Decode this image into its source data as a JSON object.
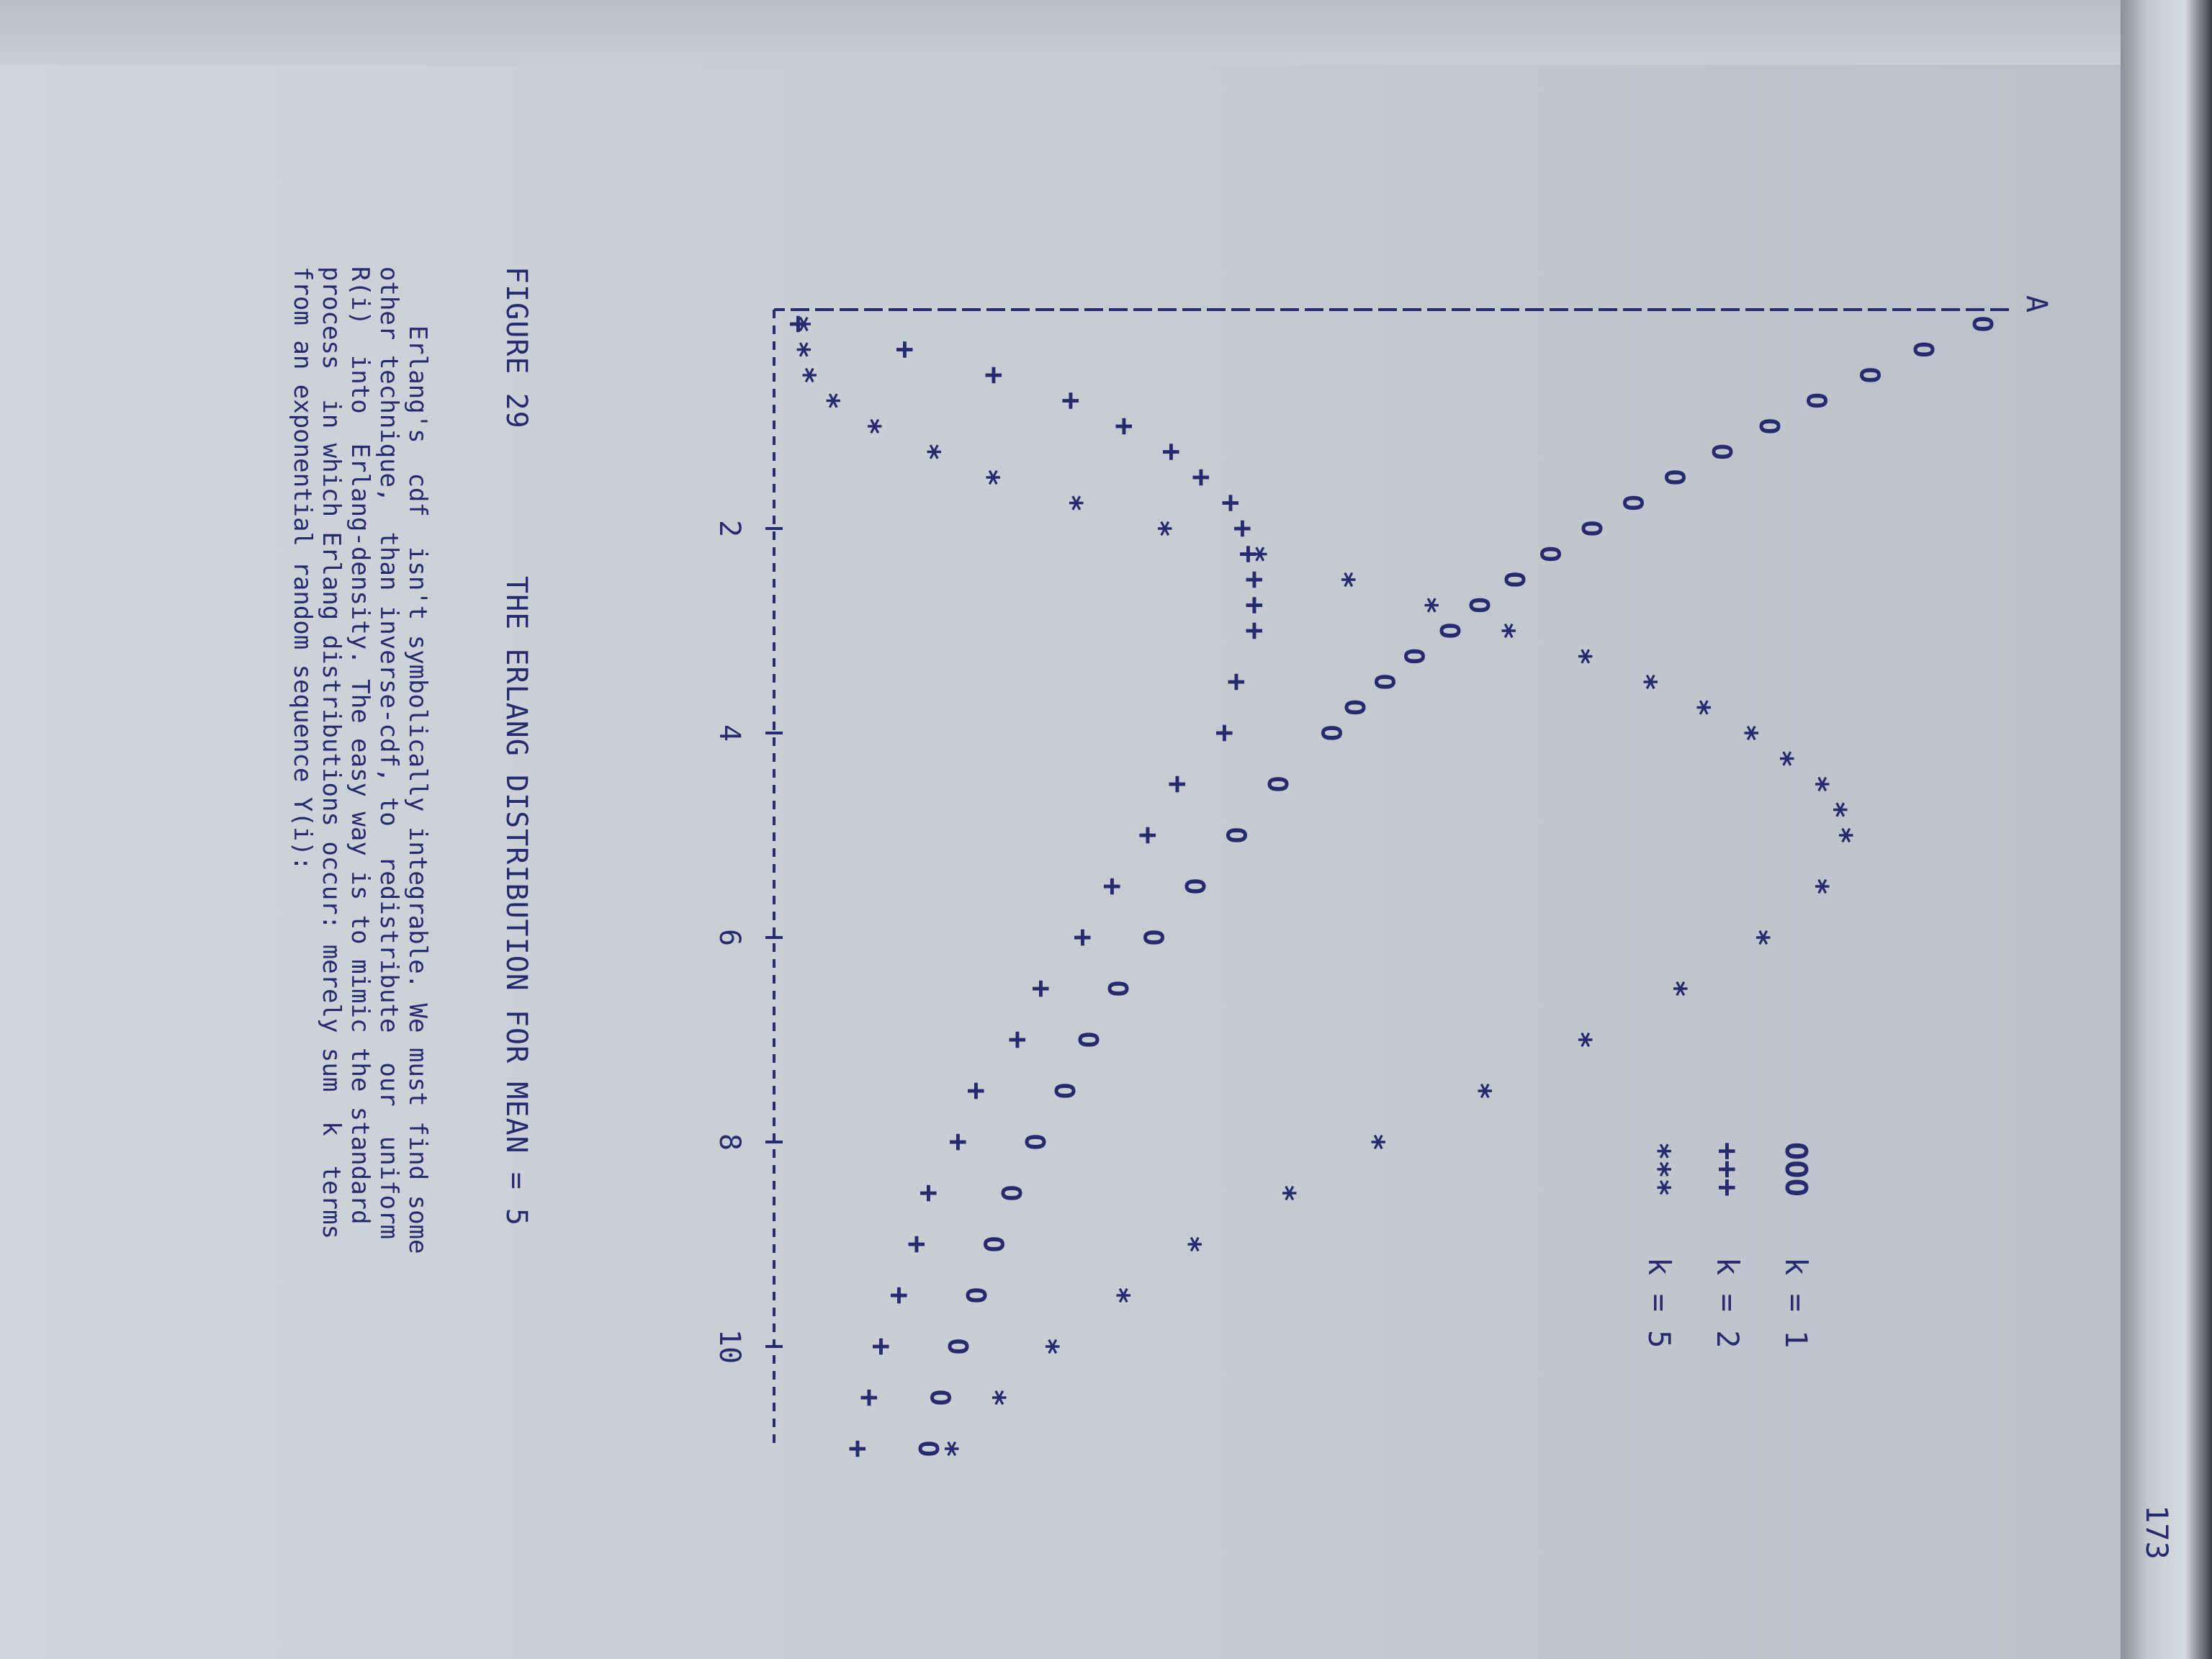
{
  "page": {
    "number": "173",
    "figure_label": "FIGURE 29",
    "figure_title": "THE ERLANG DISTRIBUTION FOR MEAN = 5",
    "body_lines": [
      "    Erlang's  cdf  isn't symbolically integrable. We must find some",
      "other technique,  than inverse-cdf, to  redistribute  our  uniform",
      "R(i)  into  Erlang-density. The easy way is to mimic the standard",
      "process  in which Erlang distributions occur: merely sum  k  terms",
      "from an exponential random sequence Y(i):"
    ]
  },
  "chart_data": {
    "type": "scatter",
    "x_ticks": [
      2,
      4,
      6,
      8,
      10
    ],
    "xlim": [
      0,
      11
    ],
    "ylim": [
      0,
      0.2
    ],
    "axis_arrow_label": "A",
    "legend_position": "right",
    "series": [
      {
        "name": "k = 1",
        "symbol": "O",
        "legend_marker": "OOO",
        "x": [
          0.0,
          0.25,
          0.5,
          0.75,
          1.0,
          1.25,
          1.5,
          1.75,
          2.0,
          2.25,
          2.5,
          2.75,
          3.0,
          3.25,
          3.5,
          3.75,
          4.0,
          4.5,
          5.0,
          5.5,
          6.0,
          6.5,
          7.0,
          7.5,
          8.0,
          8.5,
          9.0,
          9.5,
          10.0,
          10.5,
          11.0
        ],
        "y": [
          0.2,
          0.19,
          0.181,
          0.172,
          0.164,
          0.156,
          0.148,
          0.141,
          0.134,
          0.127,
          0.121,
          0.115,
          0.11,
          0.104,
          0.099,
          0.094,
          0.09,
          0.081,
          0.074,
          0.067,
          0.06,
          0.054,
          0.049,
          0.045,
          0.04,
          0.036,
          0.033,
          0.03,
          0.027,
          0.024,
          0.022
        ]
      },
      {
        "name": "k = 2",
        "symbol": "+",
        "legend_marker": "+++",
        "x": [
          0.0,
          0.25,
          0.5,
          0.75,
          1.0,
          1.25,
          1.5,
          1.75,
          2.0,
          2.25,
          2.5,
          2.75,
          3.0,
          3.5,
          4.0,
          4.5,
          5.0,
          5.5,
          6.0,
          6.5,
          7.0,
          7.5,
          8.0,
          8.5,
          9.0,
          9.5,
          10.0,
          10.5,
          11.0
        ],
        "y": [
          0.0,
          0.018,
          0.033,
          0.046,
          0.055,
          0.063,
          0.068,
          0.073,
          0.075,
          0.076,
          0.077,
          0.077,
          0.077,
          0.074,
          0.072,
          0.064,
          0.059,
          0.053,
          0.048,
          0.041,
          0.037,
          0.03,
          0.027,
          0.022,
          0.02,
          0.017,
          0.014,
          0.012,
          0.01
        ]
      },
      {
        "name": "k = 5",
        "symbol": "*",
        "legend_marker": "***",
        "x": [
          0.0,
          0.25,
          0.5,
          0.75,
          1.0,
          1.25,
          1.5,
          1.75,
          2.0,
          2.25,
          2.5,
          2.75,
          3.0,
          3.25,
          3.5,
          3.75,
          4.0,
          4.25,
          4.5,
          4.75,
          5.0,
          5.5,
          6.0,
          6.5,
          7.0,
          7.5,
          8.0,
          8.5,
          9.0,
          9.5,
          10.0,
          10.5,
          11.0
        ],
        "y": [
          0.0,
          0.0,
          0.001,
          0.005,
          0.012,
          0.022,
          0.032,
          0.046,
          0.061,
          0.077,
          0.092,
          0.106,
          0.119,
          0.132,
          0.143,
          0.152,
          0.16,
          0.166,
          0.172,
          0.175,
          0.176,
          0.172,
          0.162,
          0.148,
          0.132,
          0.115,
          0.097,
          0.082,
          0.066,
          0.054,
          0.042,
          0.033,
          0.025
        ]
      }
    ]
  },
  "colors": {
    "ink": "#252b6e",
    "paper": "#cfd5da",
    "frame": "#2a2a2e"
  }
}
